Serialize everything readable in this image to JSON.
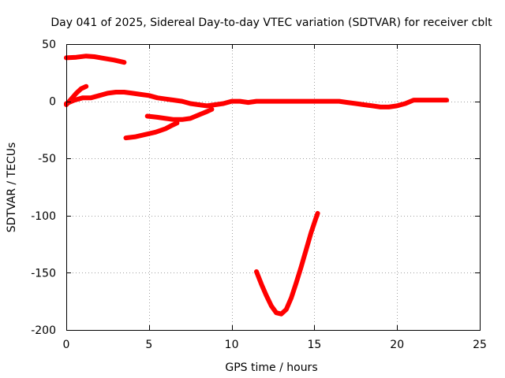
{
  "chart_data": {
    "type": "line",
    "title": "Day 041 of 2025, Sidereal Day-to-day VTEC variation (SDTVAR) for receiver cblt",
    "xlabel": "GPS time / hours",
    "ylabel": "SDTVAR / TECUs",
    "xlim": [
      0,
      25
    ],
    "ylim": [
      -200,
      50
    ],
    "xticks": [
      0,
      5,
      10,
      15,
      20,
      25
    ],
    "yticks": [
      -200,
      -150,
      -100,
      -50,
      0,
      50
    ],
    "grid": true,
    "color": "#ff0000",
    "series": [
      {
        "name": "arc-1",
        "points": [
          [
            0.0,
            38
          ],
          [
            0.6,
            38.5
          ],
          [
            1.2,
            39.5
          ],
          [
            1.7,
            39
          ],
          [
            2.3,
            37.5
          ],
          [
            2.9,
            36
          ],
          [
            3.5,
            34
          ]
        ]
      },
      {
        "name": "arc-2",
        "points": [
          [
            0.0,
            -3
          ],
          [
            0.3,
            2
          ],
          [
            0.6,
            7
          ],
          [
            0.9,
            11
          ],
          [
            1.2,
            13
          ]
        ]
      },
      {
        "name": "arc-3",
        "points": [
          [
            0.0,
            -2
          ],
          [
            0.5,
            1
          ],
          [
            1.0,
            3
          ],
          [
            1.5,
            3
          ],
          [
            2.0,
            5
          ],
          [
            2.5,
            7
          ],
          [
            3.0,
            8
          ],
          [
            3.5,
            8
          ],
          [
            4.0,
            7
          ],
          [
            4.5,
            6
          ],
          [
            5.0,
            5
          ],
          [
            5.5,
            3
          ],
          [
            6.0,
            2
          ],
          [
            6.5,
            1
          ],
          [
            7.0,
            0
          ],
          [
            7.5,
            -2
          ],
          [
            8.0,
            -3
          ],
          [
            8.5,
            -4
          ],
          [
            9.0,
            -3
          ],
          [
            9.5,
            -2
          ],
          [
            10.0,
            0
          ],
          [
            10.5,
            0
          ],
          [
            11.0,
            -1
          ],
          [
            11.5,
            0
          ],
          [
            12.0,
            0
          ],
          [
            12.5,
            0
          ],
          [
            13.0,
            0
          ],
          [
            13.5,
            0
          ],
          [
            14.0,
            0
          ],
          [
            14.5,
            0
          ],
          [
            15.0,
            0
          ],
          [
            15.5,
            0
          ],
          [
            16.0,
            0
          ],
          [
            16.5,
            0
          ],
          [
            17.0,
            -1
          ],
          [
            17.5,
            -2
          ],
          [
            18.0,
            -3
          ],
          [
            18.5,
            -4
          ],
          [
            19.0,
            -5
          ],
          [
            19.5,
            -5
          ],
          [
            20.0,
            -4
          ],
          [
            20.5,
            -2
          ],
          [
            21.0,
            1
          ],
          [
            21.5,
            1
          ],
          [
            22.0,
            1
          ],
          [
            22.5,
            1
          ],
          [
            23.0,
            1
          ]
        ]
      },
      {
        "name": "arc-4",
        "points": [
          [
            4.9,
            -13
          ],
          [
            5.5,
            -14
          ],
          [
            6.0,
            -15
          ],
          [
            6.5,
            -16
          ],
          [
            7.0,
            -16
          ],
          [
            7.5,
            -15
          ],
          [
            8.0,
            -12
          ],
          [
            8.5,
            -9
          ],
          [
            8.8,
            -7
          ]
        ]
      },
      {
        "name": "arc-5",
        "points": [
          [
            3.6,
            -32
          ],
          [
            4.2,
            -31
          ],
          [
            4.8,
            -29
          ],
          [
            5.4,
            -27
          ],
          [
            6.0,
            -24
          ],
          [
            6.4,
            -21
          ],
          [
            6.7,
            -19
          ]
        ]
      },
      {
        "name": "arc-6",
        "points": [
          [
            11.5,
            -149
          ],
          [
            11.8,
            -160
          ],
          [
            12.1,
            -170
          ],
          [
            12.4,
            -179
          ],
          [
            12.7,
            -185
          ],
          [
            13.0,
            -186
          ],
          [
            13.3,
            -182
          ],
          [
            13.6,
            -172
          ],
          [
            13.9,
            -159
          ],
          [
            14.2,
            -145
          ],
          [
            14.5,
            -130
          ],
          [
            14.8,
            -115
          ],
          [
            15.1,
            -102
          ],
          [
            15.2,
            -98
          ]
        ]
      }
    ]
  }
}
